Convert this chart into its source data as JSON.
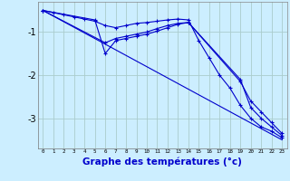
{
  "background_color": "#cceeff",
  "grid_color": "#aacccc",
  "line_color": "#0000cc",
  "xlabel": "Graphe des températures (°c)",
  "xlabel_fontsize": 7.5,
  "yticks": [
    -3,
    -2,
    -1
  ],
  "yticklabels": [
    "-3",
    "-2",
    "-1"
  ],
  "xlim": [
    -0.5,
    23.5
  ],
  "ylim": [
    -3.7,
    -0.3
  ],
  "series": [
    {
      "x": [
        0,
        1,
        2,
        3,
        4,
        5,
        6,
        7,
        8,
        9,
        10,
        11,
        12,
        13,
        14,
        15,
        16,
        17,
        18,
        19,
        20,
        21,
        22,
        23
      ],
      "y": [
        -0.5,
        -0.55,
        -0.6,
        -0.65,
        -0.7,
        -0.75,
        -0.85,
        -0.9,
        -0.85,
        -0.8,
        -0.78,
        -0.75,
        -0.72,
        -0.7,
        -0.72,
        -1.2,
        -1.6,
        -2.0,
        -2.3,
        -2.7,
        -3.0,
        -3.2,
        -3.3,
        -3.45
      ]
    },
    {
      "x": [
        0,
        6,
        7,
        8,
        9,
        10,
        11,
        12,
        13,
        14,
        19,
        20,
        21,
        22,
        23
      ],
      "y": [
        -0.5,
        -1.25,
        -1.15,
        -1.1,
        -1.05,
        -1.0,
        -0.92,
        -0.85,
        -0.8,
        -0.78,
        -2.1,
        -2.75,
        -3.0,
        -3.2,
        -3.4
      ]
    },
    {
      "x": [
        0,
        5,
        6,
        7,
        8,
        9,
        10,
        11,
        12,
        13,
        14,
        19,
        20,
        21,
        22,
        23
      ],
      "y": [
        -0.5,
        -0.72,
        -1.5,
        -1.2,
        -1.15,
        -1.1,
        -1.05,
        -0.98,
        -0.9,
        -0.82,
        -0.78,
        -2.15,
        -2.6,
        -2.85,
        -3.1,
        -3.35
      ]
    },
    {
      "x": [
        0,
        23
      ],
      "y": [
        -0.5,
        -3.5
      ]
    }
  ]
}
